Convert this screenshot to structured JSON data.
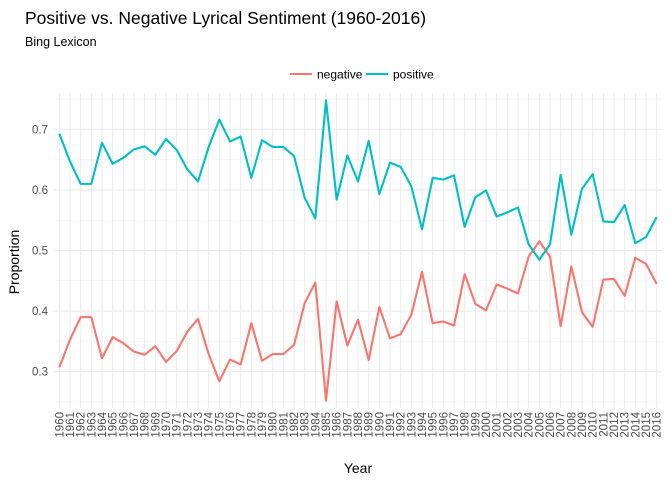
{
  "chart_data": {
    "type": "line",
    "title": "Positive vs. Negative Lyrical Sentiment (1960-2016)",
    "subtitle": "Bing Lexicon",
    "xlabel": "Year",
    "ylabel": "Proportion",
    "ylim": [
      0.24,
      0.76
    ],
    "yticks": [
      0.3,
      0.4,
      0.5,
      0.6,
      0.7
    ],
    "ytick_labels": [
      "0.3",
      "0.4",
      "0.5",
      "0.6",
      "0.7"
    ],
    "legend_position": "top",
    "grid": true,
    "x": [
      1960,
      1961,
      1962,
      1963,
      1964,
      1965,
      1966,
      1967,
      1968,
      1969,
      1970,
      1971,
      1972,
      1973,
      1974,
      1975,
      1976,
      1977,
      1978,
      1979,
      1980,
      1981,
      1982,
      1983,
      1984,
      1985,
      1986,
      1987,
      1988,
      1989,
      1990,
      1991,
      1992,
      1993,
      1994,
      1995,
      1996,
      1997,
      1998,
      1999,
      2000,
      2001,
      2002,
      2003,
      2004,
      2005,
      2006,
      2007,
      2008,
      2009,
      2010,
      2011,
      2012,
      2013,
      2014,
      2015,
      2016
    ],
    "series": [
      {
        "name": "negative",
        "color": "#F8766D",
        "values": [
          0.307,
          0.353,
          0.39,
          0.39,
          0.322,
          0.357,
          0.347,
          0.333,
          0.328,
          0.342,
          0.316,
          0.334,
          0.366,
          0.387,
          0.329,
          0.284,
          0.32,
          0.312,
          0.38,
          0.318,
          0.329,
          0.329,
          0.344,
          0.413,
          0.447,
          0.252,
          0.416,
          0.343,
          0.386,
          0.319,
          0.407,
          0.355,
          0.362,
          0.394,
          0.465,
          0.38,
          0.383,
          0.376,
          0.461,
          0.412,
          0.401,
          0.444,
          0.437,
          0.429,
          0.49,
          0.515,
          0.49,
          0.375,
          0.474,
          0.398,
          0.374,
          0.452,
          0.453,
          0.425,
          0.488,
          0.478,
          0.445
        ]
      },
      {
        "name": "positive",
        "color": "#00BFC4",
        "values": [
          0.693,
          0.647,
          0.61,
          0.61,
          0.678,
          0.643,
          0.653,
          0.667,
          0.672,
          0.658,
          0.684,
          0.666,
          0.634,
          0.614,
          0.671,
          0.716,
          0.68,
          0.688,
          0.62,
          0.682,
          0.671,
          0.671,
          0.656,
          0.587,
          0.553,
          0.748,
          0.584,
          0.657,
          0.614,
          0.681,
          0.593,
          0.645,
          0.638,
          0.606,
          0.535,
          0.62,
          0.617,
          0.624,
          0.539,
          0.588,
          0.599,
          0.556,
          0.563,
          0.571,
          0.51,
          0.485,
          0.51,
          0.625,
          0.526,
          0.602,
          0.626,
          0.548,
          0.547,
          0.575,
          0.512,
          0.522,
          0.555
        ]
      }
    ]
  }
}
